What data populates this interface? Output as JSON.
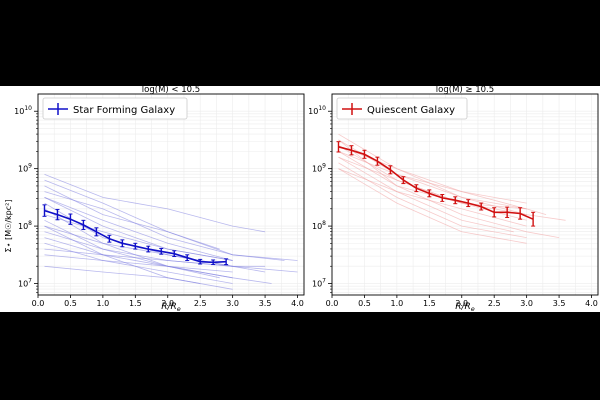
{
  "chart_data": [
    {
      "type": "line",
      "title": "log(M) < 10.5",
      "xlabel": "R/R_e",
      "ylabel": "Σ⋆ [M☉/kpc²]",
      "xlim": [
        0.0,
        4.1
      ],
      "ylim": [
        6.8,
        10.3
      ],
      "yscale": "log",
      "xticks": [
        "0.0",
        "0.5",
        "1.0",
        "1.5",
        "2.0",
        "2.5",
        "3.0",
        "3.5",
        "4.0"
      ],
      "yticks": [
        7,
        8,
        9,
        10
      ],
      "grid": true,
      "legend": "top-left",
      "color": "#1010c8",
      "individual_color": "#8080e0",
      "series": [
        {
          "name": "Star Forming Galaxy",
          "x": [
            0.1,
            0.3,
            0.5,
            0.7,
            0.9,
            1.1,
            1.3,
            1.5,
            1.7,
            1.9,
            2.1,
            2.3,
            2.5,
            2.7,
            2.9
          ],
          "log_y": [
            8.27,
            8.2,
            8.12,
            8.02,
            7.9,
            7.78,
            7.7,
            7.65,
            7.6,
            7.56,
            7.52,
            7.45,
            7.38,
            7.37,
            7.38
          ],
          "yerr": [
            0.1,
            0.09,
            0.09,
            0.08,
            0.07,
            0.06,
            0.06,
            0.05,
            0.05,
            0.05,
            0.05,
            0.05,
            0.04,
            0.04,
            0.05
          ]
        }
      ],
      "individual_profiles": [
        {
          "x": [
            0.1,
            1.0,
            2.0,
            3.0,
            3.5
          ],
          "log_y": [
            8.9,
            8.5,
            8.3,
            8.0,
            7.9
          ]
        },
        {
          "x": [
            0.1,
            1.0,
            2.0,
            3.0,
            3.8
          ],
          "log_y": [
            8.7,
            8.2,
            7.9,
            7.5,
            7.4
          ]
        },
        {
          "x": [
            0.1,
            1.0,
            2.0,
            3.0,
            4.0
          ],
          "log_y": [
            8.6,
            8.3,
            7.8,
            7.5,
            7.4
          ]
        },
        {
          "x": [
            0.1,
            1.0,
            2.0,
            3.0
          ],
          "log_y": [
            8.5,
            8.1,
            7.7,
            7.4
          ]
        },
        {
          "x": [
            0.1,
            1.0,
            2.0,
            3.0,
            3.5
          ],
          "log_y": [
            8.4,
            7.8,
            7.5,
            7.3,
            7.2
          ]
        },
        {
          "x": [
            0.1,
            1.0,
            2.0,
            2.8
          ],
          "log_y": [
            8.3,
            7.7,
            7.3,
            7.1
          ]
        },
        {
          "x": [
            0.1,
            1.0,
            2.0,
            3.0
          ],
          "log_y": [
            8.2,
            7.9,
            7.6,
            7.4
          ]
        },
        {
          "x": [
            0.1,
            1.0,
            2.0,
            3.0,
            3.6
          ],
          "log_y": [
            8.1,
            7.6,
            7.3,
            7.1,
            7.0
          ]
        },
        {
          "x": [
            0.1,
            1.0,
            2.0,
            2.5
          ],
          "log_y": [
            8.0,
            7.5,
            7.1,
            7.0
          ]
        },
        {
          "x": [
            0.1,
            1.0,
            2.0,
            3.0
          ],
          "log_y": [
            7.9,
            7.6,
            7.4,
            7.3
          ]
        },
        {
          "x": [
            0.1,
            1.0,
            2.0,
            3.0
          ],
          "log_y": [
            7.8,
            7.5,
            7.3,
            7.1
          ]
        },
        {
          "x": [
            0.1,
            1.0,
            2.0,
            3.0,
            4.0
          ],
          "log_y": [
            7.6,
            7.5,
            7.4,
            7.3,
            7.2
          ]
        },
        {
          "x": [
            0.1,
            1.0,
            2.0,
            3.0
          ],
          "log_y": [
            7.5,
            7.4,
            7.3,
            7.2
          ]
        },
        {
          "x": [
            0.1,
            1.0,
            2.0,
            3.0
          ],
          "log_y": [
            7.3,
            7.2,
            7.1,
            6.9
          ]
        },
        {
          "x": [
            0.1,
            1.0,
            2.0,
            2.8
          ],
          "log_y": [
            8.8,
            8.4,
            7.9,
            7.6
          ]
        },
        {
          "x": [
            0.1,
            1.0,
            2.0,
            3.0
          ],
          "log_y": [
            8.5,
            8.0,
            7.6,
            7.4
          ]
        },
        {
          "x": [
            0.1,
            1.0,
            2.0,
            3.0
          ],
          "log_y": [
            7.7,
            7.4,
            7.2,
            7.0
          ]
        },
        {
          "x": [
            0.1,
            1.0,
            2.0,
            3.0,
            3.5
          ],
          "log_y": [
            8.0,
            7.7,
            7.5,
            7.3,
            7.3
          ]
        }
      ]
    },
    {
      "type": "line",
      "title": "log(M) ≥ 10.5",
      "xlabel": "R/R_e",
      "ylabel": "",
      "xlim": [
        0.0,
        4.1
      ],
      "ylim": [
        6.8,
        10.3
      ],
      "yscale": "log",
      "xticks": [
        "0.0",
        "0.5",
        "1.0",
        "1.5",
        "2.0",
        "2.5",
        "3.0",
        "3.5",
        "4.0"
      ],
      "yticks": [
        7,
        8,
        9,
        10
      ],
      "grid": true,
      "legend": "top-left",
      "color": "#d01010",
      "individual_color": "#f0a0a0",
      "series": [
        {
          "name": "Quiescent Galaxy",
          "x": [
            0.1,
            0.3,
            0.5,
            0.7,
            0.9,
            1.1,
            1.3,
            1.5,
            1.7,
            1.9,
            2.1,
            2.3,
            2.5,
            2.7,
            2.9,
            3.1
          ],
          "log_y": [
            9.38,
            9.32,
            9.25,
            9.13,
            8.98,
            8.8,
            8.66,
            8.57,
            8.49,
            8.45,
            8.4,
            8.34,
            8.24,
            8.24,
            8.22,
            8.12
          ],
          "yerr": [
            0.09,
            0.08,
            0.07,
            0.07,
            0.07,
            0.06,
            0.06,
            0.06,
            0.06,
            0.06,
            0.06,
            0.06,
            0.08,
            0.09,
            0.1,
            0.12
          ]
        }
      ],
      "individual_profiles": [
        {
          "x": [
            0.1,
            1.0,
            2.0,
            3.0,
            3.6
          ],
          "log_y": [
            9.6,
            9.0,
            8.5,
            8.2,
            8.1
          ]
        },
        {
          "x": [
            0.1,
            1.0,
            2.0,
            3.0
          ],
          "log_y": [
            9.5,
            8.9,
            8.5,
            8.3
          ]
        },
        {
          "x": [
            0.1,
            1.0,
            2.0,
            3.0
          ],
          "log_y": [
            9.4,
            8.8,
            8.4,
            8.2
          ]
        },
        {
          "x": [
            0.1,
            1.0,
            2.0,
            3.0,
            3.5
          ],
          "log_y": [
            9.3,
            8.7,
            8.2,
            7.9,
            7.8
          ]
        },
        {
          "x": [
            0.1,
            1.0,
            2.0,
            2.8
          ],
          "log_y": [
            9.2,
            8.6,
            8.1,
            7.9
          ]
        },
        {
          "x": [
            0.1,
            1.0,
            2.0,
            3.0
          ],
          "log_y": [
            9.1,
            8.5,
            8.0,
            7.8
          ]
        },
        {
          "x": [
            0.1,
            1.0,
            2.0,
            3.0
          ],
          "log_y": [
            9.0,
            8.6,
            8.3,
            8.0
          ]
        },
        {
          "x": [
            0.1,
            1.0,
            2.0,
            3.0,
            3.3
          ],
          "log_y": [
            9.5,
            8.7,
            8.4,
            8.3,
            8.2
          ]
        },
        {
          "x": [
            0.1,
            1.0,
            2.0,
            3.0
          ],
          "log_y": [
            9.2,
            8.8,
            8.4,
            8.1
          ]
        },
        {
          "x": [
            0.1,
            1.0,
            2.0,
            3.0
          ],
          "log_y": [
            9.0,
            8.4,
            7.9,
            7.7
          ]
        },
        {
          "x": [
            0.1,
            1.0,
            2.0,
            3.0
          ],
          "log_y": [
            9.3,
            8.9,
            8.6,
            8.4
          ]
        },
        {
          "x": [
            0.1,
            1.0,
            2.0,
            3.0
          ],
          "log_y": [
            9.4,
            9.0,
            8.6,
            8.3
          ]
        }
      ]
    }
  ]
}
